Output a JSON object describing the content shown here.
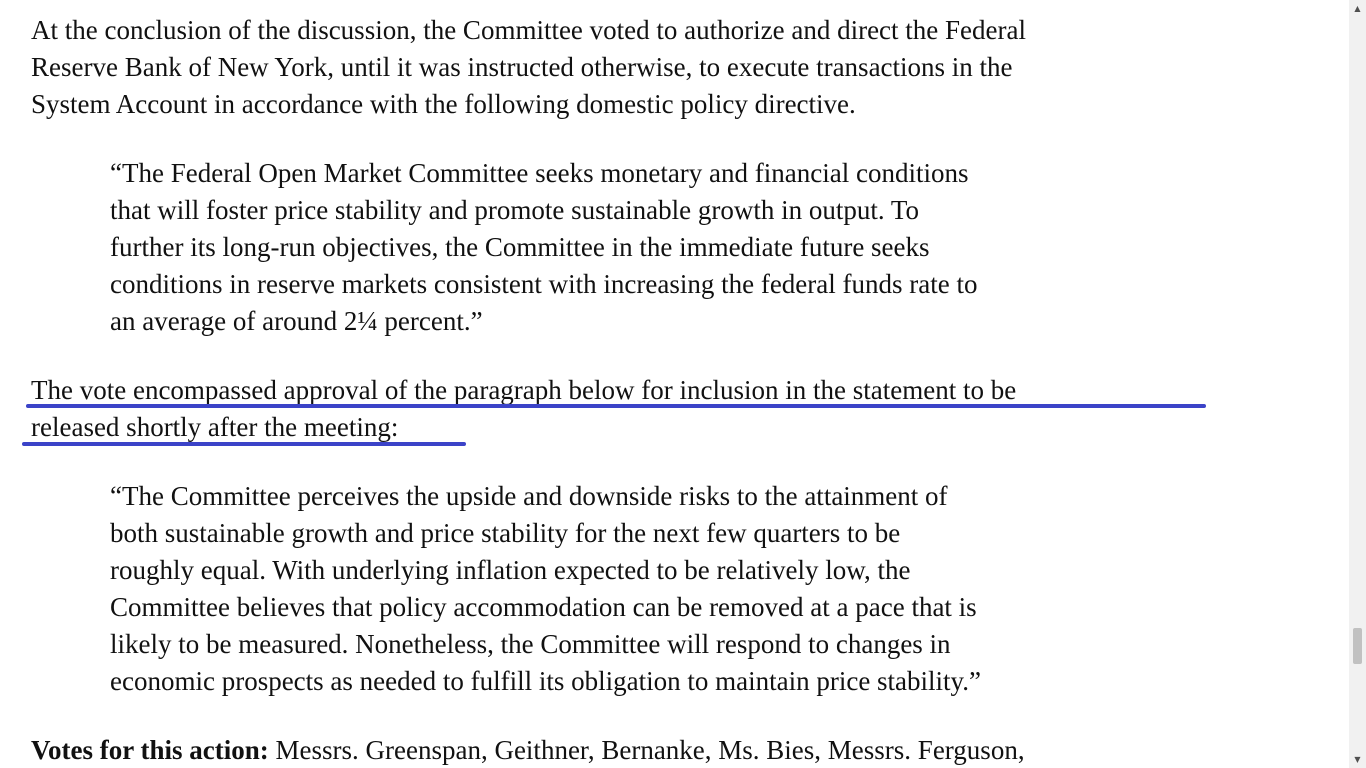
{
  "paragraph1": {
    "lines": [
      "At the conclusion of the discussion, the Committee voted to authorize and direct the Federal",
      "Reserve Bank of New York, until it was instructed otherwise, to execute transactions in the",
      "System Account in accordance with the following domestic policy directive."
    ]
  },
  "quote1": {
    "lines": [
      "“The Federal Open Market Committee seeks monetary and financial conditions",
      "that will foster price stability and promote sustainable growth in output. To",
      "further its long-run objectives, the Committee in the immediate future seeks",
      "conditions in reserve markets consistent with increasing the federal funds rate to",
      "an average of around 2¼ percent.”"
    ]
  },
  "paragraph2": {
    "lines": [
      "The vote encompassed approval of the paragraph below for inclusion in the statement to be",
      "released shortly after the meeting:"
    ]
  },
  "quote2": {
    "lines": [
      "“The Committee perceives the upside and downside risks to the attainment of",
      "both sustainable growth and price stability for the next few quarters to be",
      "roughly equal. With underlying inflation expected to be relatively low, the",
      "Committee believes that policy accommodation can be removed at a pace that is",
      "likely to be measured. Nonetheless, the Committee will respond to changes in",
      "economic prospects as needed to fulfill its obligation to maintain price stability.”"
    ]
  },
  "votes": {
    "label": "Votes for this action:",
    "text": " Messrs. Greenspan, Geithner, Bernanke, Ms. Bies, Messrs. Ferguson,"
  },
  "highlight_color": "#3b43c8",
  "scrollbar": {
    "up_icon": "arrow-up-icon",
    "down_icon": "arrow-down-icon"
  }
}
